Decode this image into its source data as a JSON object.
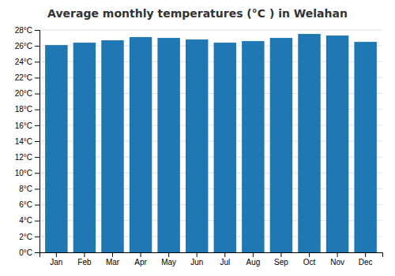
{
  "chart_data": {
    "type": "bar",
    "title": "Average monthly temperatures (°C ) in Welahan",
    "categories": [
      "Jan",
      "Feb",
      "Mar",
      "Apr",
      "May",
      "Jun",
      "Jul",
      "Aug",
      "Sep",
      "Oct",
      "Nov",
      "Dec"
    ],
    "values": [
      26.1,
      26.4,
      26.7,
      27.1,
      27.0,
      26.8,
      26.4,
      26.6,
      27.0,
      27.5,
      27.3,
      26.5
    ],
    "ylim": [
      0,
      28
    ],
    "yticks": [
      {
        "value": 0,
        "label": "0°C"
      },
      {
        "value": 2,
        "label": "2°C"
      },
      {
        "value": 4,
        "label": "4°C"
      },
      {
        "value": 6,
        "label": "6°C"
      },
      {
        "value": 8,
        "label": "8°C"
      },
      {
        "value": 10,
        "label": "10°C"
      },
      {
        "value": 12,
        "label": "12°C"
      },
      {
        "value": 14,
        "label": "14°C"
      },
      {
        "value": 16,
        "label": "16°C"
      },
      {
        "value": 18,
        "label": "18°C"
      },
      {
        "value": 20,
        "label": "20°C"
      },
      {
        "value": 22,
        "label": "22°C"
      },
      {
        "value": 24,
        "label": "24°C"
      },
      {
        "value": 26,
        "label": "26°C"
      },
      {
        "value": 28,
        "label": "28°C"
      }
    ],
    "grid": true
  }
}
